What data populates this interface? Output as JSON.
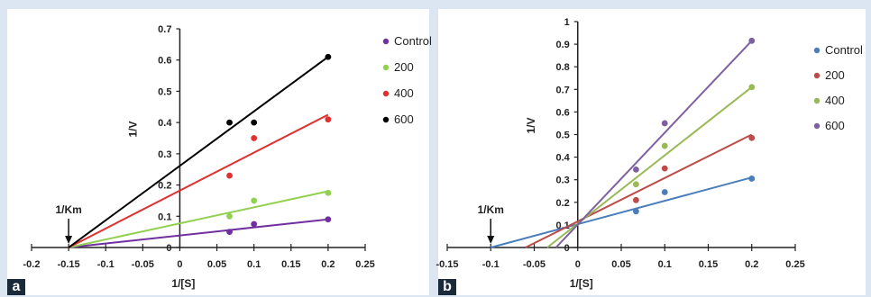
{
  "panels": [
    {
      "letter": "a",
      "chart_data": {
        "type": "scatter",
        "xlabel": "1/[S]",
        "ylabel": "1/V",
        "xlim": [
          -0.2,
          0.25
        ],
        "ylim": [
          0,
          0.7
        ],
        "x_ticks": [
          "-0.2",
          "-0.15",
          "-0.1",
          "-0.05",
          "0",
          "0.05",
          "0.1",
          "0.15",
          "0.2",
          "0.25"
        ],
        "y_ticks": [
          "0",
          "0.1",
          "0.2",
          "0.3",
          "0.4",
          "0.5",
          "0.6",
          "0.7"
        ],
        "annotation": {
          "text": "1/Km",
          "x": -0.15
        },
        "legend_position": "right",
        "series": [
          {
            "name": "Control",
            "color": "#7030a0",
            "points": [
              [
                0.067,
                0.05
              ],
              [
                0.1,
                0.075
              ],
              [
                0.2,
                0.09
              ]
            ],
            "line": [
              [
                -0.15,
                0.0
              ],
              [
                0.2,
                0.09
              ]
            ]
          },
          {
            "name": "200",
            "color": "#92d050",
            "points": [
              [
                0.067,
                0.1
              ],
              [
                0.1,
                0.15
              ],
              [
                0.2,
                0.175
              ]
            ],
            "line": [
              [
                -0.15,
                0.0
              ],
              [
                0.2,
                0.18
              ]
            ]
          },
          {
            "name": "400",
            "color": "#e03030",
            "points": [
              [
                0.067,
                0.23
              ],
              [
                0.1,
                0.35
              ],
              [
                0.2,
                0.41
              ]
            ],
            "line": [
              [
                -0.15,
                0.0
              ],
              [
                0.2,
                0.425
              ]
            ]
          },
          {
            "name": "600",
            "color": "#000000",
            "points": [
              [
                0.067,
                0.4
              ],
              [
                0.1,
                0.4
              ],
              [
                0.2,
                0.61
              ]
            ],
            "line": [
              [
                -0.15,
                0.0
              ],
              [
                0.2,
                0.61
              ]
            ]
          }
        ]
      }
    },
    {
      "letter": "b",
      "chart_data": {
        "type": "scatter",
        "xlabel": "1/[S]",
        "ylabel": "1/V",
        "xlim": [
          -0.15,
          0.25
        ],
        "ylim": [
          0,
          1
        ],
        "x_ticks": [
          "-0.15",
          "-0.1",
          "-0.05",
          "0",
          "0.05",
          "0.1",
          "0.15",
          "0.2",
          "0.25"
        ],
        "y_ticks": [
          "0",
          "0.1",
          "0.2",
          "0.3",
          "0.4",
          "0.5",
          "0.6",
          "0.7",
          "0.8",
          "0.9",
          "1"
        ],
        "annotation": {
          "text": "1/Km",
          "x": -0.1
        },
        "legend_position": "right",
        "series": [
          {
            "name": "Control",
            "color": "#4a7ebb",
            "points": [
              [
                0.067,
                0.16
              ],
              [
                0.1,
                0.245
              ],
              [
                0.2,
                0.305
              ]
            ],
            "line": [
              [
                -0.1,
                0.0
              ],
              [
                0.2,
                0.31
              ]
            ]
          },
          {
            "name": "200",
            "color": "#be4b48",
            "points": [
              [
                0.067,
                0.21
              ],
              [
                0.1,
                0.35
              ],
              [
                0.2,
                0.485
              ]
            ],
            "line": [
              [
                -0.06,
                0.0
              ],
              [
                0.2,
                0.5
              ]
            ]
          },
          {
            "name": "400",
            "color": "#98b954",
            "points": [
              [
                0.067,
                0.28
              ],
              [
                0.1,
                0.45
              ],
              [
                0.2,
                0.71
              ]
            ],
            "line": [
              [
                -0.035,
                0.0
              ],
              [
                0.2,
                0.71
              ]
            ]
          },
          {
            "name": "600",
            "color": "#7d60a0",
            "points": [
              [
                0.067,
                0.345
              ],
              [
                0.1,
                0.55
              ],
              [
                0.2,
                0.915
              ]
            ],
            "line": [
              [
                -0.025,
                0.0
              ],
              [
                0.2,
                0.915
              ]
            ]
          }
        ]
      }
    }
  ]
}
